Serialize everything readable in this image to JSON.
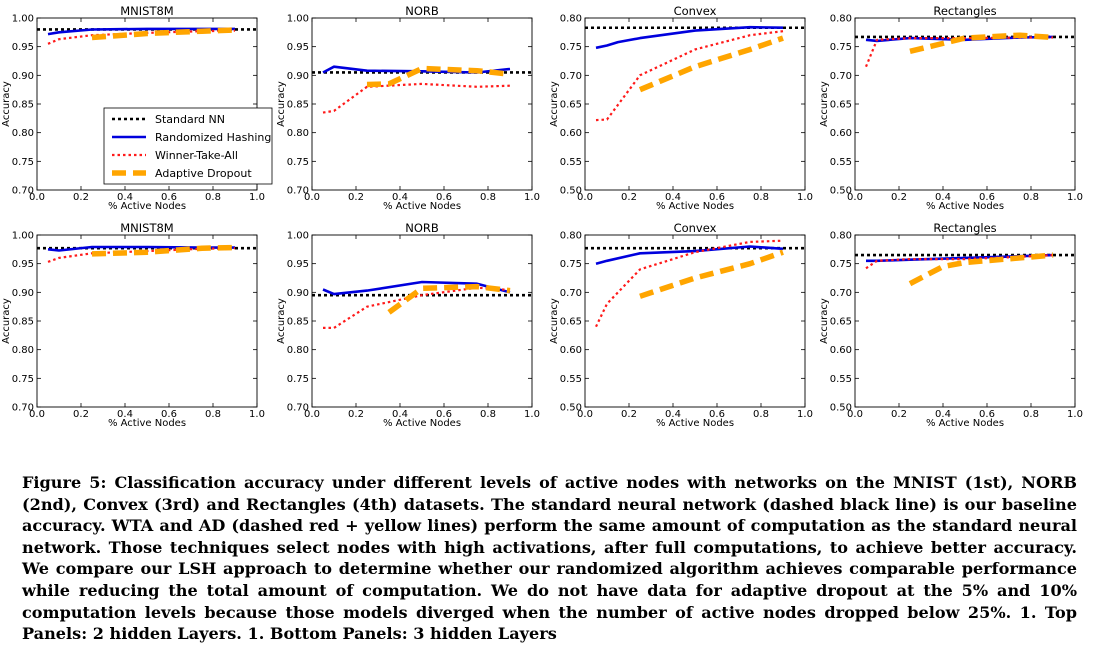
{
  "legend_labels": [
    "Standard NN",
    "Randomized Hashing",
    "Winner-Take-All",
    "Adaptive Dropout"
  ],
  "colors": {
    "standard": "#000000",
    "hashing": "#0000dd",
    "wta": "#ff1a1a",
    "ad": "#ffa500"
  },
  "caption": "Figure 5: Classification accuracy under different levels of active nodes with networks on the MNIST (1st), NORB (2nd), Convex (3rd) and Rectangles (4th) datasets. The standard neural network (dashed black line) is our baseline accuracy. WTA and AD (dashed red + yellow lines) perform the same amount of computation as the standard neural network. Those techniques select nodes with high activations, after full computations, to achieve better accuracy. We compare our LSH approach to determine whether our randomized algorithm achieves comparable performance while reducing the total amount of computation. We do not have data for adaptive dropout at the 5% and 10% computation levels because those models diverged when the number of active nodes dropped below 25%. 1. Top Panels: 2 hidden Layers. 1. Bottom Panels: 3 hidden Layers",
  "chart_data": [
    {
      "type": "line",
      "title": "MNIST8M",
      "xlabel": "% Active Nodes",
      "ylabel": "Accuracy",
      "xlim": [
        0.0,
        1.0
      ],
      "ylim": [
        0.7,
        1.0
      ],
      "xticks": [
        "0.0",
        "0.2",
        "0.4",
        "0.6",
        "0.8",
        "1.0"
      ],
      "yticks": [
        "0.70",
        "0.75",
        "0.80",
        "0.85",
        "0.90",
        "0.95",
        "1.00"
      ],
      "standard": 0.98,
      "series": [
        {
          "name": "Randomized Hashing",
          "x": [
            0.05,
            0.1,
            0.25,
            0.5,
            0.75,
            0.9
          ],
          "y": [
            0.972,
            0.975,
            0.98,
            0.981,
            0.981,
            0.981
          ]
        },
        {
          "name": "Winner-Take-All",
          "x": [
            0.05,
            0.1,
            0.25,
            0.5,
            0.75,
            0.9
          ],
          "y": [
            0.955,
            0.963,
            0.97,
            0.974,
            0.977,
            0.978
          ]
        },
        {
          "name": "Adaptive Dropout",
          "x": [
            0.25,
            0.5,
            0.75,
            0.9
          ],
          "y": [
            0.966,
            0.973,
            0.977,
            0.979
          ]
        }
      ],
      "legend": "center"
    },
    {
      "type": "line",
      "title": "NORB",
      "xlabel": "% Active Nodes",
      "ylabel": "Accuracy",
      "xlim": [
        0.0,
        1.0
      ],
      "ylim": [
        0.7,
        1.0
      ],
      "xticks": [
        "0.0",
        "0.2",
        "0.4",
        "0.6",
        "0.8",
        "1.0"
      ],
      "yticks": [
        "0.70",
        "0.75",
        "0.80",
        "0.85",
        "0.90",
        "0.95",
        "1.00"
      ],
      "standard": 0.905,
      "series": [
        {
          "name": "Randomized Hashing",
          "x": [
            0.05,
            0.1,
            0.25,
            0.5,
            0.75,
            0.9
          ],
          "y": [
            0.905,
            0.915,
            0.908,
            0.907,
            0.905,
            0.911
          ]
        },
        {
          "name": "Winner-Take-All",
          "x": [
            0.05,
            0.1,
            0.25,
            0.5,
            0.75,
            0.9
          ],
          "y": [
            0.835,
            0.838,
            0.88,
            0.885,
            0.88,
            0.882
          ]
        },
        {
          "name": "Adaptive Dropout",
          "x": [
            0.25,
            0.35,
            0.5,
            0.75,
            0.9
          ],
          "y": [
            0.884,
            0.885,
            0.912,
            0.908,
            0.902
          ]
        }
      ]
    },
    {
      "type": "line",
      "title": "Convex",
      "xlabel": "% Active Nodes",
      "ylabel": "Accuracy",
      "xlim": [
        0.0,
        1.0
      ],
      "ylim": [
        0.5,
        0.8
      ],
      "xticks": [
        "0.0",
        "0.2",
        "0.4",
        "0.6",
        "0.8",
        "1.0"
      ],
      "yticks": [
        "0.50",
        "0.55",
        "0.60",
        "0.65",
        "0.70",
        "0.75",
        "0.80"
      ],
      "standard": 0.783,
      "series": [
        {
          "name": "Randomized Hashing",
          "x": [
            0.05,
            0.1,
            0.15,
            0.25,
            0.5,
            0.75,
            0.9
          ],
          "y": [
            0.748,
            0.752,
            0.758,
            0.765,
            0.778,
            0.784,
            0.783
          ]
        },
        {
          "name": "Winner-Take-All",
          "x": [
            0.05,
            0.1,
            0.25,
            0.5,
            0.75,
            0.9
          ],
          "y": [
            0.622,
            0.623,
            0.7,
            0.745,
            0.77,
            0.777
          ]
        },
        {
          "name": "Adaptive Dropout",
          "x": [
            0.25,
            0.5,
            0.75,
            0.9
          ],
          "y": [
            0.675,
            0.715,
            0.745,
            0.765
          ]
        }
      ]
    },
    {
      "type": "line",
      "title": "Rectangles",
      "xlabel": "% Active Nodes",
      "ylabel": "Accuracy",
      "xlim": [
        0.0,
        1.0
      ],
      "ylim": [
        0.5,
        0.8
      ],
      "xticks": [
        "0.0",
        "0.2",
        "0.4",
        "0.6",
        "0.8",
        "1.0"
      ],
      "yticks": [
        "0.50",
        "0.55",
        "0.60",
        "0.65",
        "0.70",
        "0.75",
        "0.80"
      ],
      "standard": 0.767,
      "series": [
        {
          "name": "Randomized Hashing",
          "x": [
            0.05,
            0.1,
            0.25,
            0.5,
            0.75,
            0.9
          ],
          "y": [
            0.762,
            0.76,
            0.765,
            0.762,
            0.766,
            0.767
          ]
        },
        {
          "name": "Winner-Take-All",
          "x": [
            0.05,
            0.1,
            0.25,
            0.5,
            0.75,
            0.9
          ],
          "y": [
            0.715,
            0.762,
            0.765,
            0.765,
            0.766,
            0.766
          ]
        },
        {
          "name": "Adaptive Dropout",
          "x": [
            0.25,
            0.5,
            0.75,
            0.9
          ],
          "y": [
            0.742,
            0.765,
            0.77,
            0.766
          ]
        }
      ]
    },
    {
      "type": "line",
      "title": "MNIST8M",
      "xlabel": "% Active Nodes",
      "ylabel": "Accuracy",
      "xlim": [
        0.0,
        1.0
      ],
      "ylim": [
        0.7,
        1.0
      ],
      "xticks": [
        "0.0",
        "0.2",
        "0.4",
        "0.6",
        "0.8",
        "1.0"
      ],
      "yticks": [
        "0.70",
        "0.75",
        "0.80",
        "0.85",
        "0.90",
        "0.95",
        "1.00"
      ],
      "standard": 0.977,
      "series": [
        {
          "name": "Randomized Hashing",
          "x": [
            0.05,
            0.1,
            0.25,
            0.5,
            0.75,
            0.9
          ],
          "y": [
            0.975,
            0.973,
            0.979,
            0.979,
            0.978,
            0.978
          ]
        },
        {
          "name": "Winner-Take-All",
          "x": [
            0.05,
            0.1,
            0.25,
            0.5,
            0.75,
            0.9
          ],
          "y": [
            0.953,
            0.96,
            0.968,
            0.972,
            0.976,
            0.977
          ]
        },
        {
          "name": "Adaptive Dropout",
          "x": [
            0.25,
            0.5,
            0.75,
            0.9
          ],
          "y": [
            0.967,
            0.97,
            0.977,
            0.978
          ]
        }
      ]
    },
    {
      "type": "line",
      "title": "NORB",
      "xlabel": "% Active Nodes",
      "ylabel": "Accuracy",
      "xlim": [
        0.0,
        1.0
      ],
      "ylim": [
        0.7,
        1.0
      ],
      "xticks": [
        "0.0",
        "0.2",
        "0.4",
        "0.6",
        "0.8",
        "1.0"
      ],
      "yticks": [
        "0.70",
        "0.75",
        "0.80",
        "0.85",
        "0.90",
        "0.95",
        "1.00"
      ],
      "standard": 0.895,
      "series": [
        {
          "name": "Randomized Hashing",
          "x": [
            0.05,
            0.1,
            0.25,
            0.5,
            0.75,
            0.9
          ],
          "y": [
            0.905,
            0.897,
            0.903,
            0.918,
            0.915,
            0.9
          ]
        },
        {
          "name": "Winner-Take-All",
          "x": [
            0.05,
            0.1,
            0.25,
            0.5,
            0.75,
            0.9
          ],
          "y": [
            0.838,
            0.838,
            0.875,
            0.895,
            0.908,
            0.904
          ]
        },
        {
          "name": "Adaptive Dropout",
          "x": [
            0.35,
            0.5,
            0.75,
            0.9
          ],
          "y": [
            0.865,
            0.907,
            0.91,
            0.903
          ]
        }
      ]
    },
    {
      "type": "line",
      "title": "Convex",
      "xlabel": "% Active Nodes",
      "ylabel": "Accuracy",
      "xlim": [
        0.0,
        1.0
      ],
      "ylim": [
        0.5,
        0.8
      ],
      "xticks": [
        "0.0",
        "0.2",
        "0.4",
        "0.6",
        "0.8",
        "1.0"
      ],
      "yticks": [
        "0.50",
        "0.55",
        "0.60",
        "0.65",
        "0.70",
        "0.75",
        "0.80"
      ],
      "standard": 0.777,
      "series": [
        {
          "name": "Randomized Hashing",
          "x": [
            0.05,
            0.1,
            0.25,
            0.5,
            0.75,
            0.9
          ],
          "y": [
            0.75,
            0.755,
            0.768,
            0.772,
            0.78,
            0.776
          ]
        },
        {
          "name": "Winner-Take-All",
          "x": [
            0.05,
            0.1,
            0.25,
            0.5,
            0.75,
            0.9
          ],
          "y": [
            0.64,
            0.68,
            0.74,
            0.77,
            0.788,
            0.79
          ]
        },
        {
          "name": "Adaptive Dropout",
          "x": [
            0.25,
            0.5,
            0.75,
            0.9
          ],
          "y": [
            0.693,
            0.725,
            0.75,
            0.77
          ]
        }
      ]
    },
    {
      "type": "line",
      "title": "Rectangles",
      "xlabel": "% Active Nodes",
      "ylabel": "Accuracy",
      "xlim": [
        0.0,
        1.0
      ],
      "ylim": [
        0.5,
        0.8
      ],
      "xticks": [
        "0.0",
        "0.2",
        "0.4",
        "0.6",
        "0.8",
        "1.0"
      ],
      "yticks": [
        "0.50",
        "0.55",
        "0.60",
        "0.65",
        "0.70",
        "0.75",
        "0.80"
      ],
      "standard": 0.765,
      "series": [
        {
          "name": "Randomized Hashing",
          "x": [
            0.05,
            0.1,
            0.25,
            0.5,
            0.75,
            0.9
          ],
          "y": [
            0.755,
            0.755,
            0.757,
            0.76,
            0.763,
            0.765
          ]
        },
        {
          "name": "Winner-Take-All",
          "x": [
            0.05,
            0.1,
            0.25,
            0.5,
            0.75,
            0.9
          ],
          "y": [
            0.742,
            0.755,
            0.758,
            0.758,
            0.762,
            0.765
          ]
        },
        {
          "name": "Adaptive Dropout",
          "x": [
            0.25,
            0.4,
            0.5,
            0.75,
            0.9
          ],
          "y": [
            0.715,
            0.745,
            0.752,
            0.76,
            0.765
          ]
        }
      ]
    }
  ]
}
